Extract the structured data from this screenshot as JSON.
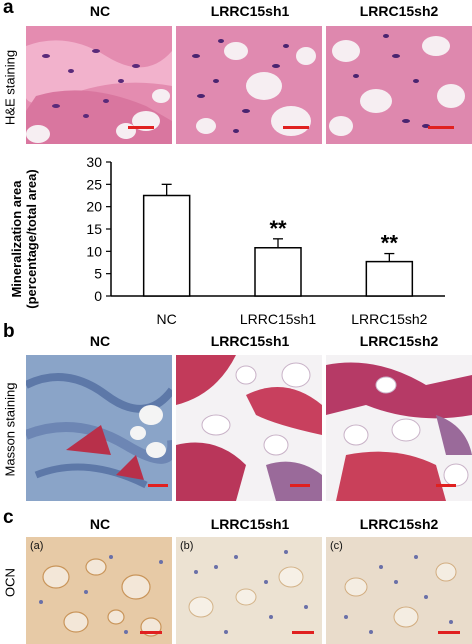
{
  "panels": {
    "a": {
      "letter": "a",
      "row_label": "H&E staining",
      "columns": [
        "NC",
        "LRRC15sh1",
        "LRRC15sh2"
      ]
    },
    "b": {
      "letter": "b",
      "row_label": "Masson staining",
      "columns": [
        "NC",
        "LRRC15sh1",
        "LRRC15sh2"
      ]
    },
    "c": {
      "letter": "c",
      "row_label": "OCN",
      "columns": [
        "NC",
        "LRRC15sh1",
        "LRRC15sh2"
      ],
      "sub_labels": [
        "(a)",
        "(b)",
        "(c)"
      ]
    }
  },
  "colors": {
    "he_background": "#e89bb8",
    "masson_blue": "#8aa4c8",
    "masson_red": "#c23a5a",
    "ocn_background": "#e8cfb0",
    "scale_bar": "#e02020"
  },
  "chart_data": {
    "type": "bar",
    "categories": [
      "NC",
      "LRRC15sh1",
      "LRRC15sh2"
    ],
    "values": [
      22.5,
      10.8,
      7.7
    ],
    "errors": [
      2.5,
      2.0,
      1.8
    ],
    "annotations": [
      "",
      "**",
      "**"
    ],
    "title": "",
    "xlabel": "",
    "ylabel": "Mineralization area (percentage/total area)",
    "ylim": [
      0,
      30
    ],
    "yticks": [
      "0",
      "5",
      "10",
      "15",
      "20",
      "25",
      "30"
    ],
    "grid": false
  }
}
